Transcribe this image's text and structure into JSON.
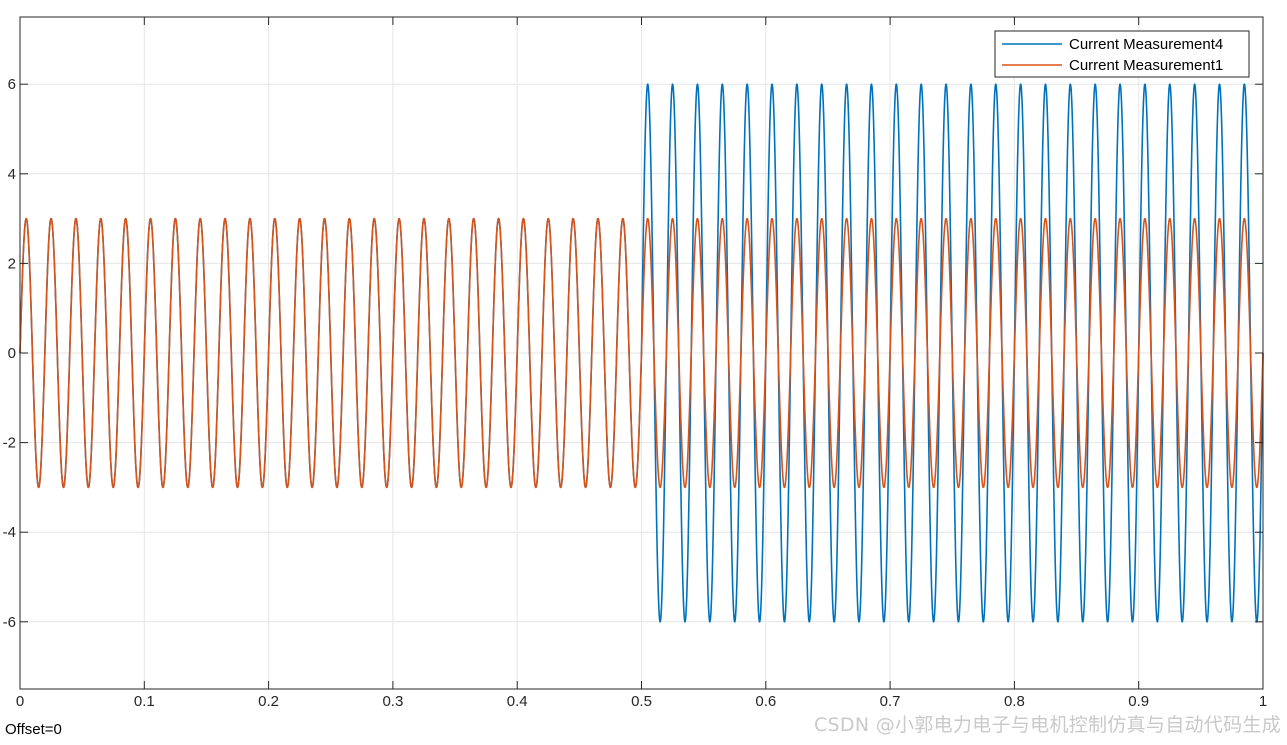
{
  "chart_data": {
    "type": "line",
    "title": "",
    "xlabel": "",
    "ylabel": "",
    "xlim": [
      0,
      1
    ],
    "ylim": [
      -7.5,
      7.5
    ],
    "xticks": [
      0,
      0.1,
      0.2,
      0.3,
      0.4,
      0.5,
      0.6,
      0.7,
      0.8,
      0.9,
      1
    ],
    "xtick_labels": [
      "0",
      "0.1",
      "0.2",
      "0.3",
      "0.4",
      "0.5",
      "0.6",
      "0.7",
      "0.8",
      "0.9",
      "1"
    ],
    "yticks": [
      -6,
      -4,
      -2,
      0,
      2,
      4,
      6
    ],
    "ytick_labels": [
      "-6",
      "-4",
      "-2",
      "0",
      "2",
      "4",
      "6"
    ],
    "grid": true,
    "legend_position": "top-right",
    "series": [
      {
        "name": "Current Measurement4",
        "color": "#0072BD",
        "description": "50 Hz sinusoid, amplitude 3 for t < 0.5, amplitude 6 for t >= 0.5",
        "frequency_hz": 50,
        "segments": [
          {
            "t_start": 0,
            "t_end": 0.5,
            "amplitude": 3
          },
          {
            "t_start": 0.5,
            "t_end": 1,
            "amplitude": 6
          }
        ]
      },
      {
        "name": "Current Measurement1",
        "color": "#D95319",
        "description": "50 Hz sinusoid, amplitude 3",
        "frequency_hz": 50,
        "segments": [
          {
            "t_start": 0,
            "t_end": 1,
            "amplitude": 3
          }
        ]
      }
    ]
  },
  "footer": {
    "offset_text": "Offset=0",
    "watermark": "CSDN @小郭电力电子与电机控制仿真与自动代码生成"
  }
}
